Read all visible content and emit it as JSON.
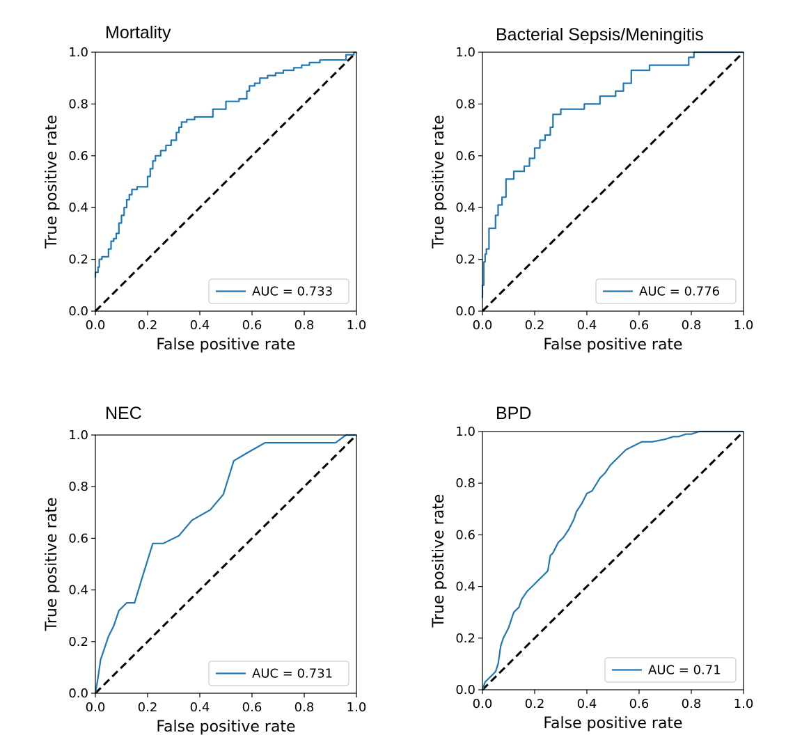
{
  "colors": {
    "curve": "#1f77b4",
    "diagonal": "#000000",
    "axes": "#000000",
    "legend_border": "#cccccc"
  },
  "chart_data": [
    {
      "type": "line",
      "title": "Mortality",
      "xlabel": "False positive rate",
      "ylabel": "True positive rate",
      "xlim": [
        0.0,
        1.0
      ],
      "ylim": [
        0.0,
        1.0
      ],
      "xticks": [
        "0.0",
        "0.2",
        "0.4",
        "0.6",
        "0.8",
        "1.0"
      ],
      "yticks": [
        "0.0",
        "0.2",
        "0.4",
        "0.6",
        "0.8",
        "1.0"
      ],
      "legend_position": "lower right",
      "legend": "AUC = 0.733",
      "series": [
        {
          "x": [
            0.0,
            0.0,
            0.01,
            0.01,
            0.015,
            0.015,
            0.025,
            0.025,
            0.05,
            0.05,
            0.06,
            0.06,
            0.07,
            0.07,
            0.08,
            0.08,
            0.09,
            0.09,
            0.1,
            0.1,
            0.11,
            0.11,
            0.12,
            0.12,
            0.13,
            0.13,
            0.14,
            0.14,
            0.16,
            0.16,
            0.2,
            0.2,
            0.21,
            0.21,
            0.22,
            0.22,
            0.23,
            0.23,
            0.25,
            0.25,
            0.27,
            0.27,
            0.29,
            0.29,
            0.31,
            0.31,
            0.32,
            0.32,
            0.33,
            0.33,
            0.35,
            0.35,
            0.38,
            0.38,
            0.45,
            0.45,
            0.5,
            0.5,
            0.55,
            0.55,
            0.58,
            0.58,
            0.59,
            0.59,
            0.61,
            0.61,
            0.63,
            0.63,
            0.66,
            0.66,
            0.69,
            0.69,
            0.72,
            0.72,
            0.76,
            0.76,
            0.79,
            0.79,
            0.82,
            0.82,
            0.86,
            0.86,
            0.89,
            0.89,
            0.96,
            0.96,
            0.99,
            0.99,
            1.0
          ],
          "y": [
            0.13,
            0.15,
            0.15,
            0.17,
            0.17,
            0.2,
            0.2,
            0.21,
            0.21,
            0.24,
            0.24,
            0.27,
            0.27,
            0.28,
            0.28,
            0.3,
            0.3,
            0.34,
            0.34,
            0.37,
            0.37,
            0.4,
            0.4,
            0.43,
            0.43,
            0.45,
            0.45,
            0.47,
            0.47,
            0.48,
            0.48,
            0.52,
            0.52,
            0.55,
            0.55,
            0.58,
            0.58,
            0.6,
            0.6,
            0.62,
            0.62,
            0.64,
            0.64,
            0.66,
            0.66,
            0.69,
            0.69,
            0.71,
            0.71,
            0.73,
            0.73,
            0.74,
            0.74,
            0.75,
            0.75,
            0.78,
            0.78,
            0.81,
            0.81,
            0.82,
            0.82,
            0.85,
            0.85,
            0.87,
            0.87,
            0.88,
            0.88,
            0.9,
            0.9,
            0.91,
            0.91,
            0.92,
            0.92,
            0.93,
            0.93,
            0.94,
            0.94,
            0.95,
            0.95,
            0.96,
            0.96,
            0.97,
            0.97,
            0.97,
            0.97,
            0.99,
            0.99,
            1.0,
            1.0
          ]
        }
      ]
    },
    {
      "type": "line",
      "title": "Bacterial Sepsis/Meningitis",
      "xlabel": "False positive rate",
      "ylabel": "True positive rate",
      "xlim": [
        0.0,
        1.0
      ],
      "ylim": [
        0.0,
        1.0
      ],
      "xticks": [
        "0.0",
        "0.2",
        "0.4",
        "0.6",
        "0.8",
        "1.0"
      ],
      "yticks": [
        "0.0",
        "0.2",
        "0.4",
        "0.6",
        "0.8",
        "1.0"
      ],
      "legend_position": "lower right",
      "legend": "AUC = 0.776",
      "series": [
        {
          "x": [
            0.0,
            0.0,
            0.005,
            0.005,
            0.01,
            0.01,
            0.015,
            0.015,
            0.025,
            0.025,
            0.05,
            0.05,
            0.06,
            0.06,
            0.075,
            0.075,
            0.09,
            0.09,
            0.12,
            0.12,
            0.16,
            0.16,
            0.18,
            0.18,
            0.2,
            0.2,
            0.22,
            0.22,
            0.24,
            0.24,
            0.26,
            0.26,
            0.27,
            0.27,
            0.3,
            0.3,
            0.39,
            0.39,
            0.45,
            0.45,
            0.51,
            0.51,
            0.54,
            0.54,
            0.57,
            0.57,
            0.64,
            0.64,
            0.79,
            0.79,
            0.81,
            0.81,
            1.0
          ],
          "y": [
            0.05,
            0.1,
            0.1,
            0.19,
            0.19,
            0.22,
            0.22,
            0.24,
            0.24,
            0.32,
            0.32,
            0.37,
            0.37,
            0.41,
            0.41,
            0.44,
            0.44,
            0.51,
            0.51,
            0.54,
            0.54,
            0.56,
            0.56,
            0.59,
            0.59,
            0.63,
            0.63,
            0.66,
            0.66,
            0.68,
            0.68,
            0.71,
            0.71,
            0.76,
            0.76,
            0.78,
            0.78,
            0.8,
            0.8,
            0.83,
            0.83,
            0.85,
            0.85,
            0.88,
            0.88,
            0.93,
            0.93,
            0.95,
            0.95,
            0.98,
            0.98,
            1.0,
            1.0
          ]
        }
      ]
    },
    {
      "type": "line",
      "title": "NEC",
      "xlabel": "False positive rate",
      "ylabel": "True positive rate",
      "xlim": [
        0.0,
        1.0
      ],
      "ylim": [
        0.0,
        1.0
      ],
      "xticks": [
        "0.0",
        "0.2",
        "0.4",
        "0.6",
        "0.8",
        "1.0"
      ],
      "yticks": [
        "0.0",
        "0.2",
        "0.4",
        "0.6",
        "0.8",
        "1.0"
      ],
      "legend_position": "lower right",
      "legend": "AUC = 0.731",
      "series": [
        {
          "x": [
            0.0,
            0.01,
            0.02,
            0.03,
            0.05,
            0.07,
            0.09,
            0.12,
            0.15,
            0.18,
            0.22,
            0.26,
            0.32,
            0.37,
            0.44,
            0.49,
            0.53,
            0.58,
            0.65,
            0.74,
            0.92,
            0.96,
            1.0
          ],
          "y": [
            0.0,
            0.06,
            0.13,
            0.16,
            0.22,
            0.26,
            0.32,
            0.35,
            0.35,
            0.45,
            0.58,
            0.58,
            0.61,
            0.67,
            0.71,
            0.77,
            0.9,
            0.93,
            0.97,
            0.97,
            0.97,
            1.0,
            1.0
          ]
        }
      ]
    },
    {
      "type": "line",
      "title": "BPD",
      "xlabel": "False positive rate",
      "ylabel": "True positive rate",
      "xlim": [
        0.0,
        1.0
      ],
      "ylim": [
        0.0,
        1.0
      ],
      "xticks": [
        "0.0",
        "0.2",
        "0.4",
        "0.6",
        "0.8",
        "1.0"
      ],
      "yticks": [
        "0.0",
        "0.2",
        "0.4",
        "0.6",
        "0.8",
        "1.0"
      ],
      "legend_position": "lower right",
      "legend": "AUC = 0.71",
      "series": [
        {
          "x": [
            0.0,
            0.01,
            0.03,
            0.05,
            0.06,
            0.07,
            0.08,
            0.1,
            0.12,
            0.14,
            0.15,
            0.17,
            0.19,
            0.21,
            0.23,
            0.25,
            0.26,
            0.27,
            0.29,
            0.31,
            0.33,
            0.35,
            0.36,
            0.38,
            0.4,
            0.42,
            0.45,
            0.47,
            0.49,
            0.51,
            0.53,
            0.55,
            0.57,
            0.59,
            0.61,
            0.63,
            0.65,
            0.7,
            0.73,
            0.75,
            0.78,
            0.8,
            0.83,
            0.9,
            1.0
          ],
          "y": [
            0.0,
            0.03,
            0.05,
            0.07,
            0.1,
            0.17,
            0.2,
            0.24,
            0.3,
            0.32,
            0.35,
            0.38,
            0.4,
            0.42,
            0.44,
            0.46,
            0.52,
            0.53,
            0.57,
            0.59,
            0.62,
            0.66,
            0.69,
            0.72,
            0.76,
            0.77,
            0.82,
            0.84,
            0.87,
            0.89,
            0.91,
            0.93,
            0.94,
            0.95,
            0.96,
            0.96,
            0.96,
            0.97,
            0.98,
            0.98,
            0.99,
            0.99,
            1.0,
            1.0,
            1.0
          ]
        }
      ]
    }
  ]
}
